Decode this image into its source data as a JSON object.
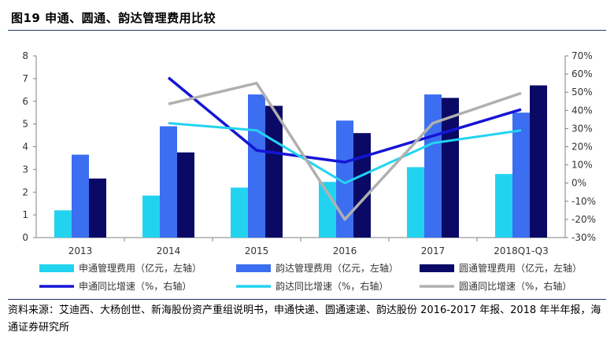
{
  "header": {
    "title": "图19 申通、圆通、韵达管理费用比较"
  },
  "source": {
    "text": "资料来源：艾迪西、大杨创世、新海股份资产重组说明书，申通快递、圆通速递、韵达股份 2016-2017 年报、2018 年半年报，海通证券研究所"
  },
  "colors": {
    "sto_bar": "#22d3f0",
    "yunda_bar": "#3b6ef0",
    "yto_bar": "#0a0a66",
    "sto_line": "#1515d6",
    "yunda_line": "#22d3f0",
    "yto_line": "#b0b0b0"
  },
  "chart_data": {
    "type": "bar+line",
    "categories": [
      "2013",
      "2014",
      "2015",
      "2016",
      "2017",
      "2018Q1-Q3"
    ],
    "left_axis": {
      "ylim": [
        0,
        8
      ],
      "ticks": [
        "0",
        "1",
        "2",
        "3",
        "4",
        "5",
        "6",
        "7",
        "8"
      ]
    },
    "right_axis": {
      "ylim": [
        -30,
        70
      ],
      "ticks": [
        "-30%",
        "-20%",
        "-10%",
        "0%",
        "10%",
        "20%",
        "30%",
        "40%",
        "50%",
        "60%",
        "70%"
      ]
    },
    "bar_series": [
      {
        "name": "申通管理费用（亿元，左轴）",
        "values": [
          1.2,
          1.85,
          2.2,
          2.45,
          3.1,
          2.8
        ]
      },
      {
        "name": "韵达管理费用（亿元，左轴）",
        "values": [
          3.65,
          4.9,
          6.3,
          5.15,
          6.3,
          5.5
        ]
      },
      {
        "name": "圆通管理费用（亿元，左轴）",
        "values": [
          2.6,
          3.75,
          5.8,
          4.6,
          6.15,
          6.7
        ]
      }
    ],
    "line_series": [
      {
        "name": "申通同比增速（%，右轴）",
        "x": [
          "2014",
          "2015",
          "2016",
          "2017",
          "2018Q1-Q3"
        ],
        "values": [
          58,
          18,
          11.5,
          26,
          40.5
        ]
      },
      {
        "name": "韵达同比增速（%，右轴）",
        "x": [
          "2014",
          "2015",
          "2016",
          "2017",
          "2018Q1-Q3"
        ],
        "values": [
          33,
          29,
          0,
          22,
          29
        ]
      },
      {
        "name": "圆通同比增速（%，右轴）",
        "x": [
          "2014",
          "2015",
          "2016",
          "2017",
          "2018Q1-Q3"
        ],
        "values": [
          43.5,
          55,
          -20,
          33,
          49.5
        ]
      }
    ],
    "legend": {
      "placement": "bottom",
      "items": [
        "申通管理费用（亿元，左轴）",
        "韵达管理费用（亿元，左轴）",
        "圆通管理费用（亿元，左轴）",
        "申通同比增速（%，右轴）",
        "韵达同比增速（%，右轴）",
        "圆通同比增速（%，右轴）"
      ]
    },
    "grid": false
  }
}
